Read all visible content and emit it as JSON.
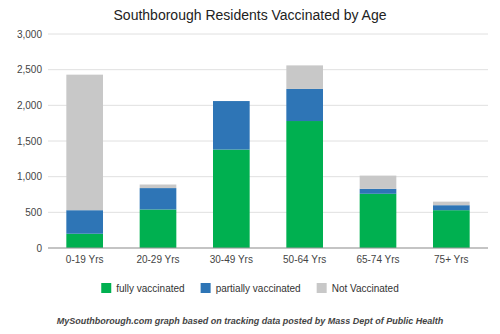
{
  "chart_data": {
    "type": "bar",
    "stacked": true,
    "title": "Southborough Residents Vaccinated by Age",
    "categories": [
      "0-19 Yrs",
      "20-29 Yrs",
      "30-49 Yrs",
      "50-64 Yrs",
      "65-74 Yrs",
      "75+ Yrs"
    ],
    "series": [
      {
        "name": "fully vaccinated",
        "color": "#00b050",
        "values": [
          200,
          540,
          1380,
          1780,
          760,
          530
        ]
      },
      {
        "name": "partially vaccinated",
        "color": "#2e75b6",
        "values": [
          330,
          300,
          680,
          450,
          70,
          70
        ]
      },
      {
        "name": "Not Vaccinated",
        "color": "#c8c8c8",
        "values": [
          1900,
          50,
          0,
          330,
          185,
          50
        ]
      }
    ],
    "ylim": [
      0,
      3000
    ],
    "yticks": [
      0,
      500,
      {
        "value": 1000,
        "label": "1,000"
      },
      {
        "value": 1500,
        "label": "1,500"
      },
      {
        "value": 2000,
        "label": "2,000"
      },
      {
        "value": 2500,
        "label": "2,500"
      },
      {
        "value": 3000,
        "label": "3,000"
      }
    ],
    "grid": true,
    "legend": "bottom",
    "footnote": "MySouthborough.com graph based on tracking data posted by Mass Dept of Public Health"
  }
}
